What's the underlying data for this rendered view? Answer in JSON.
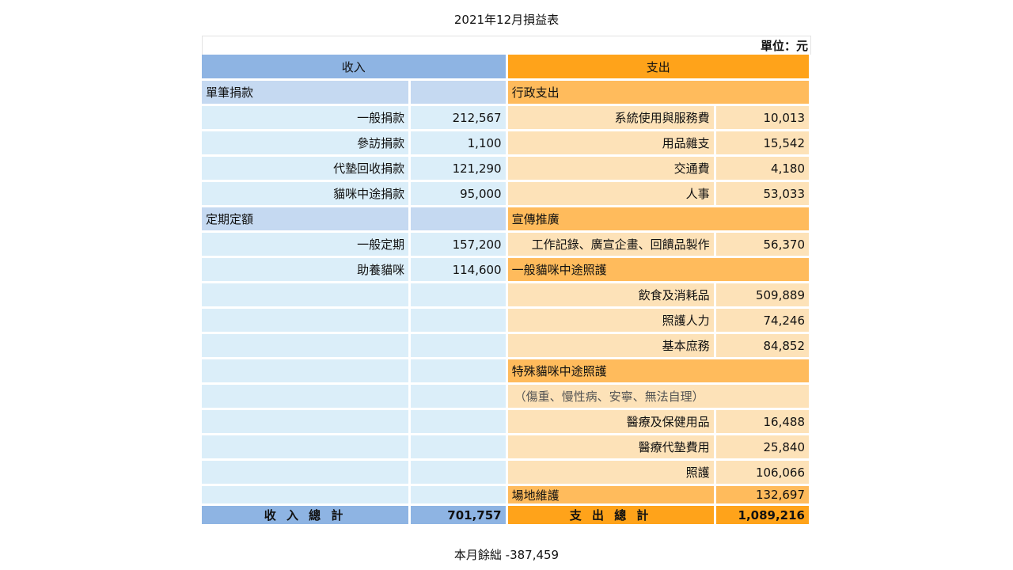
{
  "title": "2021年12月損益表",
  "unit": "單位：元",
  "income_header": "收入",
  "expense_header": "支出",
  "rows": [
    {
      "type": "mix",
      "inc": {
        "kind": "cat",
        "label": "單筆捐款"
      },
      "exp": {
        "kind": "cat",
        "label": "行政支出"
      }
    },
    {
      "type": "mix",
      "inc": {
        "kind": "item",
        "label": "一般捐款",
        "value": "212,567"
      },
      "exp": {
        "kind": "item",
        "label": "系統使用與服務費",
        "value": "10,013"
      }
    },
    {
      "type": "mix",
      "inc": {
        "kind": "item",
        "label": "參訪捐款",
        "value": "1,100"
      },
      "exp": {
        "kind": "item",
        "label": "用品雜支",
        "value": "15,542"
      }
    },
    {
      "type": "mix",
      "inc": {
        "kind": "item",
        "label": "代墊回收捐款",
        "value": "121,290"
      },
      "exp": {
        "kind": "item",
        "label": "交通費",
        "value": "4,180"
      }
    },
    {
      "type": "mix",
      "inc": {
        "kind": "item",
        "label": "貓咪中途捐款",
        "value": "95,000"
      },
      "exp": {
        "kind": "item",
        "label": "人事",
        "value": "53,033"
      }
    },
    {
      "type": "mix",
      "inc": {
        "kind": "cat",
        "label": "定期定額"
      },
      "exp": {
        "kind": "cat",
        "label": "宣傳推廣"
      }
    },
    {
      "type": "mix",
      "inc": {
        "kind": "item",
        "label": "一般定期",
        "value": "157,200"
      },
      "exp": {
        "kind": "item",
        "label": "工作記錄、廣宣企畫、回饋品製作",
        "value": "56,370"
      }
    },
    {
      "type": "mix",
      "inc": {
        "kind": "item",
        "label": "助養貓咪",
        "value": "114,600"
      },
      "exp": {
        "kind": "cat",
        "label": "一般貓咪中途照護"
      }
    },
    {
      "type": "mix",
      "inc": {
        "kind": "empty"
      },
      "exp": {
        "kind": "item",
        "label": "飲食及消耗品",
        "value": "509,889"
      }
    },
    {
      "type": "mix",
      "inc": {
        "kind": "empty"
      },
      "exp": {
        "kind": "item",
        "label": "照護人力",
        "value": "74,246"
      }
    },
    {
      "type": "mix",
      "inc": {
        "kind": "empty"
      },
      "exp": {
        "kind": "item",
        "label": "基本庶務",
        "value": "84,852"
      }
    },
    {
      "type": "mix",
      "inc": {
        "kind": "empty"
      },
      "exp": {
        "kind": "cat",
        "label": "特殊貓咪中途照護"
      }
    },
    {
      "type": "mix",
      "inc": {
        "kind": "empty"
      },
      "exp": {
        "kind": "note",
        "label": "（傷重、慢性病、安寧、無法自理）"
      }
    },
    {
      "type": "mix",
      "inc": {
        "kind": "empty"
      },
      "exp": {
        "kind": "item",
        "label": "醫療及保健用品",
        "value": "16,488"
      }
    },
    {
      "type": "mix",
      "inc": {
        "kind": "empty"
      },
      "exp": {
        "kind": "item",
        "label": "醫療代墊費用",
        "value": "25,840"
      }
    },
    {
      "type": "mix",
      "inc": {
        "kind": "empty"
      },
      "exp": {
        "kind": "item",
        "label": "照護",
        "value": "106,066"
      }
    },
    {
      "type": "mix",
      "inc": {
        "kind": "empty"
      },
      "exp": {
        "kind": "catval",
        "label": "場地維護",
        "value": "132,697"
      }
    }
  ],
  "totals": {
    "income_label": "收 入 總 計",
    "income_value": "701,757",
    "expense_label": "支 出 總 計",
    "expense_value": "1,089,216"
  },
  "balance": "本月餘絀 -387,459"
}
